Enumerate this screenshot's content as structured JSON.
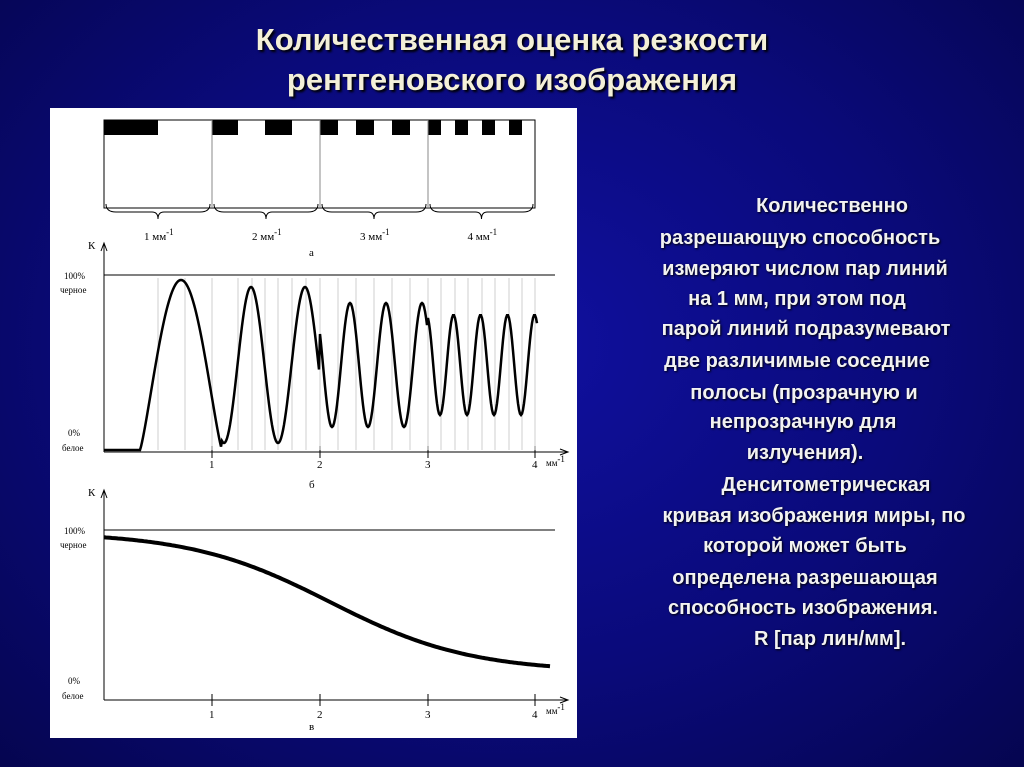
{
  "header": {
    "title": [
      "Количественная оценка резкости",
      "рентгеновского изображения"
    ]
  },
  "figure": {
    "group_labels": [
      {
        "text": "1 мм",
        "sup": "-1"
      },
      {
        "text": "2 мм",
        "sup": "-1"
      },
      {
        "text": "3 мм",
        "sup": "-1"
      },
      {
        "text": "4 мм",
        "sup": "-1"
      }
    ],
    "caption_a": "а",
    "axis_label": "К",
    "y_top": "100%",
    "y_top_note": "черное",
    "y_bottom": "0%",
    "y_bottom_note": "белое",
    "x_ticks": [
      "1",
      "2",
      "3",
      "4"
    ],
    "x_unit": {
      "text": "мм",
      "sup": "-1"
    },
    "caption_b": "б",
    "caption_c": "в"
  },
  "text": {
    "lines": [
      "Количественно",
      "разрешающую способность",
      "измеряют числом пар линий",
      "на 1 мм, при этом под",
      "парой линий подразумевают",
      "две различимые соседние",
      "полосы (прозрачную и",
      "непрозрачную для",
      "излучения).",
      "Денситометрическая",
      "кривая изображения миры, по",
      "которой может быть",
      "определена разрешающая",
      "способность изображения.",
      "R [пар лин/мм]."
    ]
  }
}
